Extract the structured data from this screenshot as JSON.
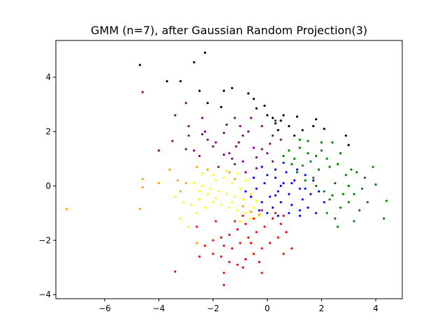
{
  "chart_data": {
    "type": "scatter",
    "title": "GMM (n=7), after Gaussian Random Projection(3)",
    "xlabel": "",
    "ylabel": "",
    "xlim": [
      -7.8,
      4.98
    ],
    "ylim": [
      -4.15,
      5.35
    ],
    "xticks": [
      -6,
      -4,
      -2,
      0,
      2,
      4
    ],
    "yticks": [
      -4,
      -2,
      0,
      2,
      4
    ],
    "grid": false,
    "legend": "none",
    "series": [
      {
        "color": "#000000",
        "points": [
          [
            -2.3,
            4.9
          ],
          [
            -4.7,
            4.45
          ],
          [
            -2.7,
            4.55
          ],
          [
            -3.7,
            3.85
          ],
          [
            -3.2,
            3.85
          ],
          [
            -2.5,
            3.5
          ],
          [
            -1.3,
            3.6
          ],
          [
            -1.6,
            3.5
          ],
          [
            -0.7,
            3.4
          ],
          [
            -0.5,
            3.2
          ],
          [
            -2.2,
            3.05
          ],
          [
            -1.7,
            2.9
          ],
          [
            -0.4,
            2.85
          ],
          [
            -0.1,
            2.95
          ],
          [
            0.0,
            2.6
          ],
          [
            0.2,
            2.5
          ],
          [
            0.5,
            2.4
          ],
          [
            0.6,
            2.6
          ],
          [
            1.1,
            2.55
          ],
          [
            0.8,
            2.2
          ],
          [
            1.3,
            2.05
          ],
          [
            1.7,
            2.2
          ],
          [
            2.1,
            2.1
          ],
          [
            1.8,
            2.45
          ],
          [
            2.9,
            1.85
          ],
          [
            3.0,
            1.5
          ],
          [
            0.4,
            2.05
          ],
          [
            1.0,
            1.85
          ],
          [
            0.3,
            2.3
          ]
        ]
      },
      {
        "color": "#800080",
        "points": [
          [
            -4.6,
            3.45
          ],
          [
            -3.0,
            3.05
          ],
          [
            -3.4,
            2.6
          ],
          [
            -2.4,
            2.5
          ],
          [
            -2.9,
            2.2
          ],
          [
            -2.4,
            1.9
          ],
          [
            -2.3,
            2.0
          ],
          [
            -2.9,
            1.85
          ],
          [
            -3.5,
            1.65
          ],
          [
            -4.0,
            1.3
          ],
          [
            -3.0,
            1.35
          ],
          [
            -2.5,
            1.1
          ],
          [
            -2.0,
            1.45
          ],
          [
            -1.6,
            1.95
          ],
          [
            -1.5,
            2.25
          ],
          [
            -1.2,
            2.5
          ],
          [
            -1.0,
            2.2
          ],
          [
            -0.9,
            1.85
          ],
          [
            -1.05,
            1.6
          ],
          [
            -1.15,
            1.45
          ],
          [
            -1.4,
            1.2
          ],
          [
            -1.2,
            0.8
          ],
          [
            -0.8,
            0.5
          ],
          [
            -0.4,
            1.05
          ],
          [
            -0.5,
            1.4
          ],
          [
            -0.2,
            1.35
          ],
          [
            0.1,
            1.55
          ],
          [
            0.2,
            1.85
          ],
          [
            -0.2,
            2.2
          ],
          [
            0.3,
            2.4
          ],
          [
            -0.6,
            2.5
          ],
          [
            0.0,
            1.2
          ],
          [
            0.2,
            0.9
          ],
          [
            -0.4,
            0.65
          ],
          [
            -1.8,
            0.7
          ],
          [
            -1.6,
            1.15
          ],
          [
            -1.9,
            1.6
          ],
          [
            -2.2,
            1.7
          ],
          [
            -2.7,
            1.3
          ],
          [
            -0.7,
            2.0
          ],
          [
            0.5,
            1.7
          ],
          [
            -1.3,
            1.0
          ],
          [
            -0.9,
            0.9
          ]
        ]
      },
      {
        "color": "#008000",
        "points": [
          [
            0.8,
            1.3
          ],
          [
            1.0,
            1.0
          ],
          [
            1.2,
            1.4
          ],
          [
            1.5,
            1.2
          ],
          [
            1.8,
            1.1
          ],
          [
            2.0,
            1.3
          ],
          [
            2.2,
            1.0
          ],
          [
            1.6,
            0.9
          ],
          [
            1.3,
            0.75
          ],
          [
            1.9,
            0.6
          ],
          [
            2.3,
            0.7
          ],
          [
            2.6,
            0.8
          ],
          [
            2.9,
            0.4
          ],
          [
            3.3,
            0.5
          ],
          [
            3.6,
            0.3
          ],
          [
            3.0,
            0.0
          ],
          [
            3.2,
            -0.3
          ],
          [
            3.0,
            -0.6
          ],
          [
            2.7,
            -0.8
          ],
          [
            3.4,
            -0.9
          ],
          [
            3.2,
            -1.3
          ],
          [
            2.5,
            -1.2
          ],
          [
            2.6,
            -1.5
          ],
          [
            2.2,
            -1.0
          ],
          [
            2.3,
            -0.5
          ],
          [
            2.1,
            -0.2
          ],
          [
            2.5,
            0.1
          ],
          [
            1.7,
            0.3
          ],
          [
            1.4,
            0.2
          ],
          [
            1.1,
            0.5
          ],
          [
            0.9,
            0.8
          ],
          [
            0.6,
            1.1
          ],
          [
            2.4,
            1.6
          ],
          [
            2.0,
            1.6
          ],
          [
            1.5,
            1.65
          ],
          [
            1.2,
            1.7
          ],
          [
            3.9,
            0.7
          ],
          [
            4.0,
            0.05
          ],
          [
            4.3,
            -1.2
          ],
          [
            4.4,
            -0.55
          ],
          [
            3.5,
            -0.1
          ],
          [
            2.8,
            -0.3
          ],
          [
            2.4,
            -0.35
          ],
          [
            1.8,
            0.0
          ],
          [
            3.1,
            0.6
          ],
          [
            2.7,
            1.2
          ],
          [
            3.7,
            -0.6
          ]
        ]
      },
      {
        "color": "#0000ff",
        "points": [
          [
            0.0,
            0.4
          ],
          [
            0.3,
            0.3
          ],
          [
            0.6,
            0.1
          ],
          [
            1.0,
            0.2
          ],
          [
            1.2,
            -0.1
          ],
          [
            0.8,
            -0.3
          ],
          [
            0.4,
            -0.2
          ],
          [
            0.1,
            -0.4
          ],
          [
            -0.2,
            -0.6
          ],
          [
            0.2,
            -0.8
          ],
          [
            0.5,
            -0.6
          ],
          [
            0.9,
            -0.7
          ],
          [
            1.3,
            -0.5
          ],
          [
            1.6,
            -0.3
          ],
          [
            1.9,
            -0.2
          ],
          [
            1.7,
            0.2
          ],
          [
            1.4,
            0.4
          ],
          [
            1.1,
            0.6
          ],
          [
            0.7,
            0.5
          ],
          [
            0.3,
            0.6
          ],
          [
            -0.1,
            0.1
          ],
          [
            -0.4,
            -0.1
          ],
          [
            -0.6,
            -0.4
          ],
          [
            -0.3,
            -0.9
          ],
          [
            0.0,
            -1.0
          ],
          [
            0.4,
            -1.1
          ],
          [
            0.8,
            -1.0
          ],
          [
            1.2,
            -0.9
          ],
          [
            1.5,
            -0.8
          ],
          [
            1.2,
            -1.1
          ],
          [
            0.6,
            0.85
          ],
          [
            -0.2,
            0.7
          ],
          [
            2.1,
            -0.6
          ],
          [
            1.8,
            -1.0
          ],
          [
            -0.5,
            0.3
          ],
          [
            0.5,
            0.0
          ],
          [
            0.9,
            0.1
          ],
          [
            1.4,
            -0.1
          ],
          [
            -0.8,
            -0.2
          ],
          [
            0.3,
            -0.35
          ]
        ]
      },
      {
        "color": "#ffff00",
        "points": [
          [
            -2.7,
            0.1
          ],
          [
            -2.4,
            0.0
          ],
          [
            -2.1,
            -0.1
          ],
          [
            -1.8,
            -0.2
          ],
          [
            -1.5,
            -0.3
          ],
          [
            -1.2,
            -0.4
          ],
          [
            -0.9,
            -0.5
          ],
          [
            -0.6,
            -0.3
          ],
          [
            -1.0,
            -0.1
          ],
          [
            -1.3,
            0.1
          ],
          [
            -1.6,
            0.3
          ],
          [
            -1.9,
            0.2
          ],
          [
            -2.2,
            -0.3
          ],
          [
            -2.5,
            -0.5
          ],
          [
            -2.8,
            -0.7
          ],
          [
            -2.3,
            -0.8
          ],
          [
            -2.0,
            -0.6
          ],
          [
            -1.7,
            -0.7
          ],
          [
            -1.4,
            -0.8
          ],
          [
            -1.1,
            -0.9
          ],
          [
            -0.8,
            -1.0
          ],
          [
            -0.5,
            -0.8
          ],
          [
            -0.3,
            -1.1
          ],
          [
            -0.6,
            -1.2
          ],
          [
            -1.0,
            -1.3
          ],
          [
            -2.6,
            -1.0
          ],
          [
            -3.1,
            -0.6
          ],
          [
            -3.2,
            -1.2
          ],
          [
            -2.9,
            -1.5
          ],
          [
            -3.4,
            -0.4
          ],
          [
            -2.0,
            0.4
          ],
          [
            -1.5,
            0.55
          ],
          [
            -1.1,
            0.45
          ],
          [
            -0.8,
            0.2
          ],
          [
            -2.4,
            0.45
          ],
          [
            -1.3,
            -0.6
          ],
          [
            -1.9,
            -0.45
          ],
          [
            -2.5,
            -0.2
          ],
          [
            -0.4,
            -0.55
          ]
        ]
      },
      {
        "color": "#ff0000",
        "points": [
          [
            -0.2,
            -0.9
          ],
          [
            -0.5,
            -1.2
          ],
          [
            -0.8,
            -1.4
          ],
          [
            -1.1,
            -1.6
          ],
          [
            -1.4,
            -1.8
          ],
          [
            -1.7,
            -1.9
          ],
          [
            -2.0,
            -2.0
          ],
          [
            -2.3,
            -2.2
          ],
          [
            -2.0,
            -2.5
          ],
          [
            -1.7,
            -2.6
          ],
          [
            -1.4,
            -2.8
          ],
          [
            -1.1,
            -2.9
          ],
          [
            -0.8,
            -2.7
          ],
          [
            -0.5,
            -2.5
          ],
          [
            -0.2,
            -2.3
          ],
          [
            0.1,
            -2.1
          ],
          [
            0.4,
            -1.9
          ],
          [
            0.7,
            -1.7
          ],
          [
            0.5,
            -1.4
          ],
          [
            0.2,
            -1.2
          ],
          [
            -0.1,
            -1.5
          ],
          [
            -0.4,
            -1.7
          ],
          [
            -0.7,
            -1.9
          ],
          [
            -1.0,
            -2.1
          ],
          [
            -1.3,
            -2.3
          ],
          [
            -1.6,
            -2.2
          ],
          [
            -1.2,
            -1.3
          ],
          [
            -0.9,
            -1.1
          ],
          [
            -2.6,
            -1.5
          ],
          [
            -2.5,
            -2.6
          ],
          [
            -1.6,
            -3.2
          ],
          [
            -1.6,
            -3.65
          ],
          [
            -0.2,
            -3.2
          ],
          [
            -3.4,
            -3.15
          ],
          [
            0.9,
            -2.3
          ],
          [
            0.6,
            -2.5
          ],
          [
            -0.3,
            -2.8
          ],
          [
            -0.9,
            -3.0
          ],
          [
            -1.9,
            -1.3
          ],
          [
            0.3,
            -1.0
          ],
          [
            0.6,
            -1.1
          ],
          [
            -0.6,
            -2.1
          ]
        ]
      },
      {
        "color": "#ffa500",
        "points": [
          [
            -7.4,
            -0.85
          ],
          [
            -4.7,
            -0.85
          ],
          [
            -4.6,
            0.25
          ],
          [
            -4.6,
            -0.05
          ],
          [
            -4.0,
            0.1
          ],
          [
            -3.6,
            0.6
          ],
          [
            -3.3,
            0.2
          ],
          [
            -3.2,
            -0.2
          ],
          [
            -3.0,
            0.1
          ],
          [
            -2.6,
            0.7
          ],
          [
            -2.6,
            -2.1
          ],
          [
            -2.2,
            0.6
          ],
          [
            -1.4,
            0.5
          ],
          [
            -1.2,
            0.25
          ],
          [
            -0.6,
            -0.95
          ],
          [
            -0.3,
            -1.05
          ],
          [
            -0.9,
            -0.75
          ]
        ]
      }
    ]
  }
}
